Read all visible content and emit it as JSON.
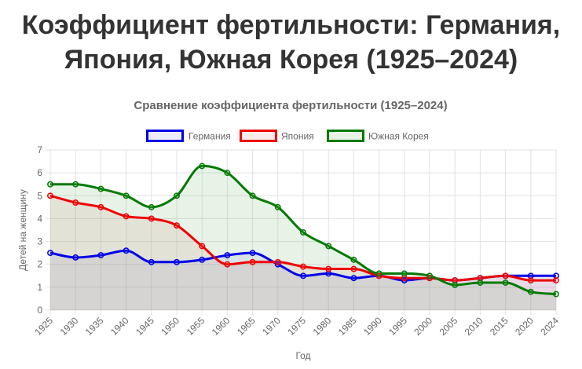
{
  "page": {
    "title_line1": "Коэффициент фертильности: Германия,",
    "title_line2": "Япония, Южная Корея (1925–2024)"
  },
  "chart_data": {
    "type": "line",
    "title": "Сравнение коэффициента фертильности (1925–2024)",
    "xlabel": "Год",
    "ylabel": "Детей на женщину",
    "ylim": [
      0,
      7
    ],
    "y_ticks": [
      0,
      1,
      2,
      3,
      4,
      5,
      6,
      7
    ],
    "grid": true,
    "legend_position": "top-center",
    "categories": [
      "1925",
      "1930",
      "1935",
      "1940",
      "1945",
      "1950",
      "1955",
      "1960",
      "1965",
      "1970",
      "1975",
      "1980",
      "1985",
      "1990",
      "1995",
      "2000",
      "2005",
      "2010",
      "2015",
      "2020",
      "2024"
    ],
    "series": [
      {
        "name": "Германия",
        "color": "#0000e6",
        "fill": "rgba(120,120,220,0.14)",
        "values": [
          2.5,
          2.3,
          2.4,
          2.6,
          2.1,
          2.1,
          2.2,
          2.4,
          2.5,
          2.0,
          1.5,
          1.6,
          1.4,
          1.5,
          1.3,
          1.4,
          1.3,
          1.4,
          1.5,
          1.5,
          1.5
        ]
      },
      {
        "name": "Япония",
        "color": "#ee0000",
        "fill": "rgba(220,110,110,0.14)",
        "values": [
          5.0,
          4.7,
          4.5,
          4.1,
          4.0,
          3.7,
          2.8,
          2.0,
          2.1,
          2.1,
          1.9,
          1.8,
          1.8,
          1.5,
          1.4,
          1.4,
          1.3,
          1.4,
          1.5,
          1.3,
          1.3
        ]
      },
      {
        "name": "Южная Корея",
        "color": "#007a00",
        "fill": "rgba(110,180,110,0.16)",
        "values": [
          5.5,
          5.5,
          5.3,
          5.0,
          4.5,
          5.0,
          6.3,
          6.0,
          5.0,
          4.5,
          3.4,
          2.8,
          2.2,
          1.6,
          1.6,
          1.5,
          1.1,
          1.2,
          1.2,
          0.8,
          0.7
        ]
      }
    ]
  }
}
